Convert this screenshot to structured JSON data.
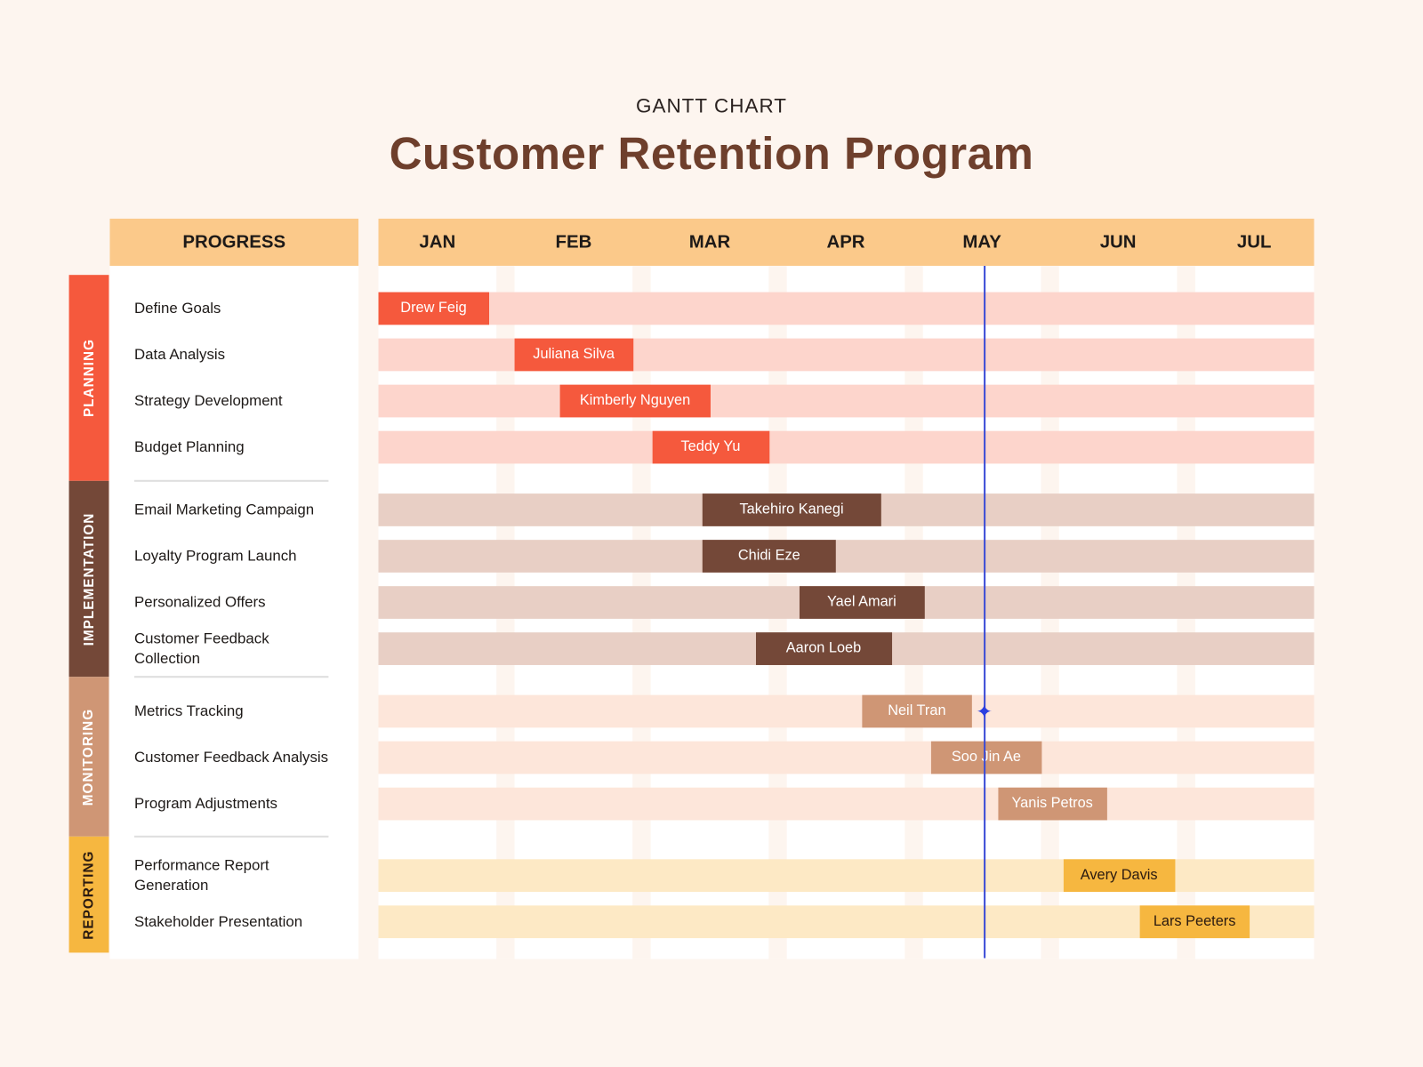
{
  "chart_data": {
    "type": "gantt",
    "subtitle": "GANTT CHART",
    "title": "Customer Retention Program",
    "progress_header": "PROGRESS",
    "months": [
      "JAN",
      "FEB",
      "MAR",
      "APR",
      "MAY",
      "JUN",
      "JUL"
    ],
    "x_unit": "months from start of JAN",
    "today": 4.45,
    "colors": {
      "header": "#fbc98a",
      "background": "#fdf5ef",
      "today_line": "#3a4bd6"
    },
    "groups": [
      {
        "name": "PLANNING",
        "color": "#f5593d",
        "track": "#fdd5cc",
        "text": "#ffffff",
        "tasks": [
          {
            "task": "Define Goals",
            "owner": "Drew Feig",
            "start": 0.0,
            "end": 0.81
          },
          {
            "task": "Data Analysis",
            "owner": "Juliana Silva",
            "start": 1.0,
            "end": 1.87
          },
          {
            "task": "Strategy Development",
            "owner": "Kimberly Nguyen",
            "start": 1.33,
            "end": 2.44
          },
          {
            "task": "Budget Planning",
            "owner": "Teddy Yu",
            "start": 2.01,
            "end": 2.87
          }
        ]
      },
      {
        "name": "IMPLEMENTATION",
        "color": "#744838",
        "track": "#e8cfc5",
        "text": "#ffffff",
        "tasks": [
          {
            "task": "Email Marketing Campaign",
            "owner": "Takehiro Kanegi",
            "start": 2.38,
            "end": 3.69
          },
          {
            "task": "Loyalty Program Launch",
            "owner": "Chidi Eze",
            "start": 2.38,
            "end": 3.36
          },
          {
            "task": "Personalized Offers",
            "owner": "Yael Amari",
            "start": 3.09,
            "end": 4.01
          },
          {
            "task": "Customer Feedback Collection",
            "owner": "Aaron Loeb",
            "start": 2.77,
            "end": 3.77
          }
        ]
      },
      {
        "name": "MONITORING",
        "color": "#cf9675",
        "track": "#fde6da",
        "text": "#ffffff",
        "tasks": [
          {
            "task": "Metrics Tracking",
            "owner": "Neil Tran",
            "start": 3.55,
            "end": 4.36
          },
          {
            "task": "Customer Feedback Analysis",
            "owner": "Soo Jin Ae",
            "start": 4.06,
            "end": 4.87
          },
          {
            "task": "Program Adjustments",
            "owner": "Yanis Petros",
            "start": 4.55,
            "end": 5.35
          }
        ]
      },
      {
        "name": "REPORTING",
        "color": "#f6b740",
        "track": "#fde9c5",
        "text": "#2a1a10",
        "tasks": [
          {
            "task": "Performance Report Generation",
            "owner": "Avery Davis",
            "start": 5.03,
            "end": 5.85
          },
          {
            "task": "Stakeholder Presentation",
            "owner": "Lars Peeters",
            "start": 5.59,
            "end": 6.4
          }
        ]
      }
    ]
  }
}
